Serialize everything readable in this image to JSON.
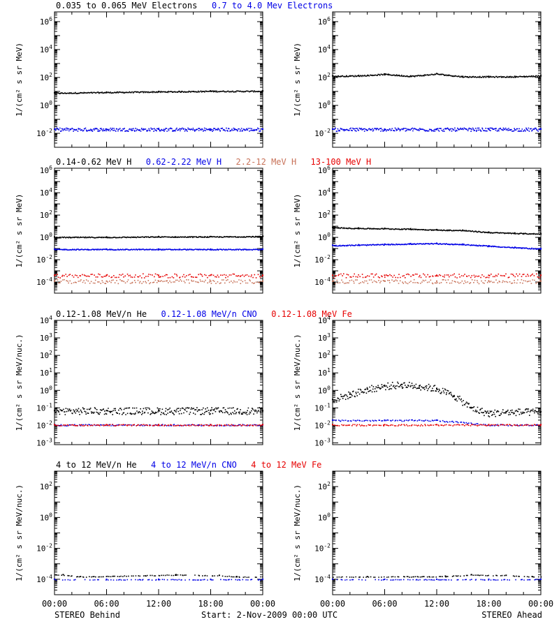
{
  "colors": {
    "black": "#000000",
    "blue": "#0000e6",
    "tan": "#c8735a",
    "red": "#e60000"
  },
  "footer": {
    "left": "STEREO Behind",
    "center": "Start:  2-Nov-2009 00:00 UTC",
    "right": "STEREO Ahead"
  },
  "rows": [
    {
      "legend": [
        {
          "text": "0.035 to 0.065 MeV Electrons",
          "color": "#000000"
        },
        {
          "text": "0.7 to 4.0 Mev Electrons",
          "color": "#0000e6"
        }
      ],
      "ylabel": "1/(cm² s sr MeV)"
    },
    {
      "legend": [
        {
          "text": "0.14-0.62 MeV H",
          "color": "#000000"
        },
        {
          "text": "0.62-2.22 MeV H",
          "color": "#0000e6"
        },
        {
          "text": "2.2-12 MeV H",
          "color": "#c8735a"
        },
        {
          "text": "13-100 MeV H",
          "color": "#e60000"
        }
      ],
      "ylabel": "1/(cm² s sr MeV)"
    },
    {
      "legend": [
        {
          "text": "0.12-1.08 MeV/n He",
          "color": "#000000"
        },
        {
          "text": "0.12-1.08 MeV/n CNO",
          "color": "#0000e6"
        },
        {
          "text": "0.12-1.08 MeV Fe",
          "color": "#e60000"
        }
      ],
      "ylabel": "1/(cm² s sr MeV/nuc.)"
    },
    {
      "legend": [
        {
          "text": "4 to 12 MeV/n He",
          "color": "#000000"
        },
        {
          "text": "4 to 12 MeV/n CNO",
          "color": "#0000e6"
        },
        {
          "text": "4 to 12 MeV Fe",
          "color": "#e60000"
        }
      ],
      "ylabel": "1/(cm² s sr MeV/nuc.)"
    }
  ],
  "chart_data": [
    {
      "type": "scatter",
      "spacecraft": "STEREO Behind",
      "yscale": "log",
      "ylim": [
        0.001,
        1000000
      ],
      "ytick_exponents": [
        -2,
        0,
        2,
        4,
        6
      ],
      "xticks": [
        "00:00",
        "06:00",
        "12:00",
        "18:00",
        "00:00"
      ],
      "series": [
        {
          "name": "0.035 to 0.065 MeV Electrons",
          "color": "#000000",
          "x": [
            0,
            6,
            12,
            18,
            24
          ],
          "y": [
            8,
            9,
            10,
            11,
            11
          ]
        },
        {
          "name": "0.7 to 4.0 Mev Electrons",
          "color": "#0000e6",
          "x": [
            0,
            6,
            12,
            18,
            24
          ],
          "y": [
            0.02,
            0.02,
            0.02,
            0.02,
            0.02
          ]
        }
      ]
    },
    {
      "type": "scatter",
      "spacecraft": "STEREO Ahead",
      "yscale": "log",
      "ylim": [
        0.001,
        1000000
      ],
      "ytick_exponents": [
        -2,
        0,
        2,
        4,
        6
      ],
      "xticks": [
        "00:00",
        "06:00",
        "12:00",
        "18:00",
        "00:00"
      ],
      "series": [
        {
          "name": "0.035 to 0.065 MeV Electrons",
          "color": "#000000",
          "x": [
            0,
            3,
            6,
            9,
            12,
            15,
            18,
            21,
            24
          ],
          "y": [
            130,
            140,
            180,
            130,
            190,
            120,
            120,
            120,
            140
          ]
        },
        {
          "name": "0.7 to 4.0 Mev Electrons",
          "color": "#0000e6",
          "x": [
            0,
            6,
            12,
            18,
            24
          ],
          "y": [
            0.02,
            0.02,
            0.02,
            0.02,
            0.02
          ]
        }
      ]
    },
    {
      "type": "scatter",
      "spacecraft": "STEREO Behind",
      "yscale": "log",
      "ylim": [
        1e-05,
        1000000
      ],
      "ytick_exponents": [
        -4,
        -2,
        0,
        2,
        4,
        6
      ],
      "xticks": [
        "00:00",
        "06:00",
        "12:00",
        "18:00",
        "00:00"
      ],
      "series": [
        {
          "name": "0.14-0.62 MeV H",
          "color": "#000000",
          "x": [
            0,
            6,
            12,
            18,
            24
          ],
          "y": [
            1.1,
            1.1,
            1.2,
            1.2,
            1.3
          ]
        },
        {
          "name": "0.62-2.22 MeV H",
          "color": "#0000e6",
          "x": [
            0,
            6,
            12,
            18,
            24
          ],
          "y": [
            0.09,
            0.09,
            0.09,
            0.09,
            0.09
          ]
        },
        {
          "name": "2.2-12 MeV H",
          "color": "#c8735a",
          "x": [
            0,
            6,
            12,
            18,
            24
          ],
          "y": [
            0.00012,
            0.00012,
            0.00012,
            0.00012,
            0.00012
          ]
        },
        {
          "name": "13-100 MeV H",
          "color": "#e60000",
          "x": [
            0,
            6,
            12,
            18,
            24
          ],
          "y": [
            0.0004,
            0.0004,
            0.0004,
            0.0004,
            0.0004
          ]
        }
      ]
    },
    {
      "type": "scatter",
      "spacecraft": "STEREO Ahead",
      "yscale": "log",
      "ylim": [
        1e-05,
        1000000
      ],
      "ytick_exponents": [
        -4,
        -2,
        0,
        2,
        4,
        6
      ],
      "xticks": [
        "00:00",
        "06:00",
        "12:00",
        "18:00",
        "00:00"
      ],
      "series": [
        {
          "name": "0.14-0.62 MeV H",
          "color": "#000000",
          "x": [
            0,
            3,
            6,
            9,
            12,
            15,
            18,
            21,
            24
          ],
          "y": [
            8,
            7,
            6.5,
            6,
            5,
            4.5,
            3,
            2.5,
            2.2
          ]
        },
        {
          "name": "0.62-2.22 MeV H",
          "color": "#0000e6",
          "x": [
            0,
            3,
            6,
            9,
            12,
            15,
            18,
            21,
            24
          ],
          "y": [
            0.2,
            0.22,
            0.25,
            0.28,
            0.3,
            0.25,
            0.18,
            0.13,
            0.1
          ]
        },
        {
          "name": "2.2-12 MeV H",
          "color": "#c8735a",
          "x": [
            0,
            6,
            12,
            18,
            24
          ],
          "y": [
            0.00012,
            0.00012,
            0.00012,
            0.00012,
            0.00012
          ]
        },
        {
          "name": "13-100 MeV H",
          "color": "#e60000",
          "x": [
            0,
            6,
            12,
            18,
            24
          ],
          "y": [
            0.0004,
            0.0004,
            0.0004,
            0.0004,
            0.0004
          ]
        }
      ]
    },
    {
      "type": "scatter",
      "spacecraft": "STEREO Behind",
      "yscale": "log",
      "ylim": [
        0.001,
        10000
      ],
      "ytick_exponents": [
        -3,
        -2,
        -1,
        0,
        1,
        2,
        3,
        4
      ],
      "xticks": [
        "00:00",
        "06:00",
        "12:00",
        "18:00",
        "00:00"
      ],
      "series": [
        {
          "name": "0.12-1.08 MeV/n He",
          "color": "#000000",
          "x": [
            0,
            6,
            12,
            18,
            24
          ],
          "y": [
            0.07,
            0.07,
            0.07,
            0.07,
            0.07
          ]
        },
        {
          "name": "0.12-1.08 MeV/n CNO",
          "color": "#0000e6",
          "x": [
            0,
            6,
            12,
            18,
            24
          ],
          "y": [
            0.011,
            0.011,
            0.011,
            0.011,
            0.011
          ]
        },
        {
          "name": "0.12-1.08 MeV Fe",
          "color": "#e60000",
          "x": [
            0,
            6,
            12,
            18,
            24
          ],
          "y": [
            0.011,
            0.011,
            0.011,
            0.011,
            0.011
          ]
        }
      ]
    },
    {
      "type": "scatter",
      "spacecraft": "STEREO Ahead",
      "yscale": "log",
      "ylim": [
        0.001,
        10000
      ],
      "ytick_exponents": [
        -3,
        -2,
        -1,
        0,
        1,
        2,
        3,
        4
      ],
      "xticks": [
        "00:00",
        "06:00",
        "12:00",
        "18:00",
        "00:00"
      ],
      "series": [
        {
          "name": "0.12-1.08 MeV/n He",
          "color": "#000000",
          "x": [
            0,
            2,
            4,
            6,
            8,
            10,
            12,
            14,
            16,
            18,
            20,
            24
          ],
          "y": [
            0.3,
            0.6,
            1.2,
            1.8,
            2.2,
            1.8,
            1.3,
            0.5,
            0.1,
            0.05,
            0.06,
            0.06
          ]
        },
        {
          "name": "0.12-1.08 MeV/n CNO",
          "color": "#0000e6",
          "x": [
            0,
            6,
            12,
            18,
            24
          ],
          "y": [
            0.02,
            0.02,
            0.02,
            0.011,
            0.011
          ]
        },
        {
          "name": "0.12-1.08 MeV Fe",
          "color": "#e60000",
          "x": [
            0,
            6,
            12,
            18,
            24
          ],
          "y": [
            0.011,
            0.011,
            0.011,
            0.011,
            0.011
          ]
        }
      ]
    },
    {
      "type": "scatter",
      "spacecraft": "STEREO Behind",
      "yscale": "log",
      "ylim": [
        1e-05,
        1000
      ],
      "ytick_exponents": [
        -4,
        -2,
        0,
        2
      ],
      "xticks": [
        "00:00",
        "06:00",
        "12:00",
        "18:00",
        "00:00"
      ],
      "series": [
        {
          "name": "4 to 12 MeV/n He",
          "color": "#000000",
          "x": [
            1,
            3,
            14,
            19,
            21
          ],
          "y": [
            0.0002,
            0.00015,
            0.0002,
            0.00018,
            0.00015
          ]
        },
        {
          "name": "4 to 12 MeV/n CNO",
          "color": "#0000e6",
          "x": [
            0,
            6,
            12,
            18,
            24
          ],
          "y": [
            0.0001,
            0.0001,
            0.0001,
            0.0001,
            0.0001
          ]
        }
      ]
    },
    {
      "type": "scatter",
      "spacecraft": "STEREO Ahead",
      "yscale": "log",
      "ylim": [
        1e-05,
        1000
      ],
      "ytick_exponents": [
        -4,
        -2,
        0,
        2
      ],
      "xticks": [
        "00:00",
        "06:00",
        "12:00",
        "18:00",
        "00:00"
      ],
      "series": [
        {
          "name": "4 to 12 MeV/n He",
          "color": "#000000",
          "x": [
            4,
            13,
            16,
            20,
            23
          ],
          "y": [
            0.00015,
            0.00016,
            0.0002,
            0.00018,
            0.00015
          ]
        },
        {
          "name": "4 to 12 MeV/n CNO",
          "color": "#0000e6",
          "x": [
            0,
            6,
            12,
            18,
            24
          ],
          "y": [
            0.0001,
            0.0001,
            0.0001,
            0.0001,
            0.0001
          ]
        }
      ]
    }
  ]
}
